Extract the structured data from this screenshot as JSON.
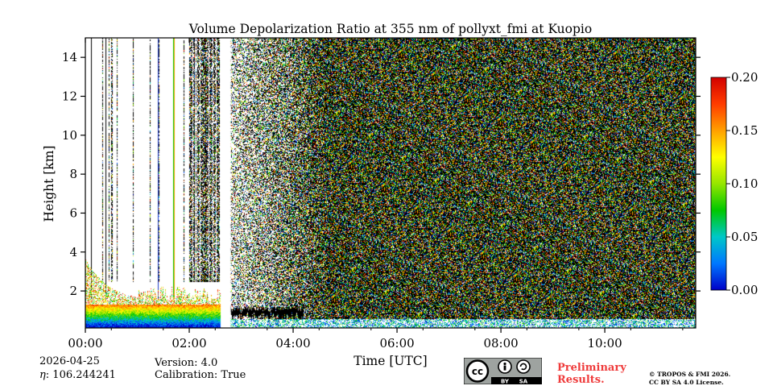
{
  "chart_data": {
    "type": "heatmap",
    "title": "Volume Depolarization Ratio at 355 nm of pollyxt_fmi at Kuopio",
    "xlabel": "Time [UTC]",
    "ylabel": "Height [km]",
    "xlim": [
      0,
      11.75
    ],
    "ylim": [
      0.1,
      15
    ],
    "x_ticks": [
      {
        "value": 0,
        "label": "00:00"
      },
      {
        "value": 2,
        "label": "02:00"
      },
      {
        "value": 4,
        "label": "04:00"
      },
      {
        "value": 6,
        "label": "06:00"
      },
      {
        "value": 8,
        "label": "08:00"
      },
      {
        "value": 10,
        "label": "10:00"
      }
    ],
    "y_ticks": [
      {
        "value": 2,
        "label": "2"
      },
      {
        "value": 4,
        "label": "4"
      },
      {
        "value": 6,
        "label": "6"
      },
      {
        "value": 8,
        "label": "8"
      },
      {
        "value": 10,
        "label": "10"
      },
      {
        "value": 12,
        "label": "12"
      },
      {
        "value": 14,
        "label": "14"
      }
    ],
    "colorbar": {
      "min": 0.0,
      "max": 0.2,
      "ticks": [
        {
          "value": 0.0,
          "label": "0.00"
        },
        {
          "value": 0.05,
          "label": "0.05"
        },
        {
          "value": 0.1,
          "label": "0.10"
        },
        {
          "value": 0.15,
          "label": "0.15"
        },
        {
          "value": 0.2,
          "label": "0.20"
        }
      ],
      "colors": [
        "#0000c8",
        "#0078ff",
        "#00c8c8",
        "#00c800",
        "#96e600",
        "#ffff00",
        "#ffa000",
        "#ff3c00",
        "#d20000"
      ]
    },
    "regions": [
      {
        "name": "low-level aerosol/cloud layer",
        "t_start": 0.0,
        "t_end": 2.6,
        "h_bottom": 0.1,
        "h_top": 1.3,
        "ratio_range": [
          0.0,
          0.18
        ]
      },
      {
        "name": "elevated scattered signal",
        "t_start": 0.0,
        "t_end": 2.6,
        "h_bottom": 1.3,
        "h_top": 3.6,
        "ratio_range": [
          0.05,
          0.2
        ]
      },
      {
        "name": "data gap",
        "t_start": 2.62,
        "t_end": 2.8,
        "h_bottom": 0.1,
        "h_top": 15
      },
      {
        "name": "noisy free troposphere",
        "t_start": 2.8,
        "t_end": 11.75,
        "h_bottom": 0.3,
        "h_top": 15,
        "ratio_range": [
          0.0,
          0.2
        ]
      },
      {
        "name": "near-ground low depolarization layer",
        "t_start": 2.8,
        "t_end": 11.75,
        "h_bottom": 0.1,
        "h_top": 0.3,
        "ratio_range": [
          0.0,
          0.15
        ]
      }
    ]
  },
  "footer": {
    "date": "2026-04-25",
    "eta_label": "η",
    "eta_value": ": 106.244241",
    "version": "Version: 4.0",
    "calibration": "Calibration: True",
    "preliminary_line1": "Preliminary",
    "preliminary_line2": "Results.",
    "copyright_line1": "© TROPOS & FMI 2026.",
    "copyright_line2": "CC BY SA 4.0 License.",
    "license_badge": {
      "cc": "cc",
      "by": "BY",
      "sa": "SA",
      "icon": "creative-commons-icon"
    }
  }
}
